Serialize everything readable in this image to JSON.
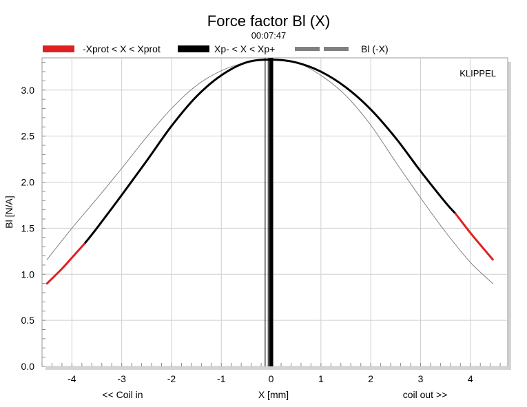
{
  "chart_data": {
    "type": "line",
    "title": "Force factor Bl (X)",
    "subtitle": "00:07:47",
    "watermark": "KLIPPEL",
    "xlabel": "X [mm]",
    "ylabel": "Bl [N/A]",
    "x_left_note": "<< Coil in",
    "x_right_note": "coil out >>",
    "xlim": [
      -4.6,
      4.75
    ],
    "ylim": [
      0.0,
      3.35
    ],
    "xticks": [
      -4,
      -3,
      -2,
      -1,
      0,
      1,
      2,
      3,
      4
    ],
    "yticks": [
      0.0,
      0.5,
      1.0,
      1.5,
      2.0,
      2.5,
      3.0
    ],
    "ytick_labels": [
      "0.0",
      "0.5",
      "1.0",
      "1.5",
      "2.0",
      "2.5",
      "3.0"
    ],
    "grid": true,
    "legend_position": "top",
    "legend": [
      {
        "label": "-Xprot < X < Xprot",
        "color": "#e02020",
        "style": "solid"
      },
      {
        "label": "Xp- < X < Xp+",
        "color": "#000000",
        "style": "solid"
      },
      {
        "label": "Bl (-X)",
        "color": "#808080",
        "style": "dashed"
      }
    ],
    "series": [
      {
        "name": "-Xprot < X < Xprot",
        "color": "#e02020",
        "x": [
          -4.5,
          -4.2,
          -4.0,
          -3.75
        ],
        "y": [
          0.9,
          1.06,
          1.18,
          1.33
        ]
      },
      {
        "name": "Xp- < X < Xp+",
        "color": "#000000",
        "x": [
          -3.75,
          -3.5,
          -3.0,
          -2.5,
          -2.0,
          -1.5,
          -1.0,
          -0.5,
          0.0,
          0.5,
          1.0,
          1.5,
          2.0,
          2.5,
          3.0,
          3.5,
          3.7
        ],
        "y": [
          1.33,
          1.5,
          1.86,
          2.23,
          2.61,
          2.93,
          3.16,
          3.3,
          3.33,
          3.3,
          3.2,
          3.03,
          2.79,
          2.48,
          2.12,
          1.78,
          1.66
        ]
      },
      {
        "name": "-Xprot < X < Xprot",
        "color": "#e02020",
        "x": [
          3.7,
          4.0,
          4.2,
          4.45
        ],
        "y": [
          1.66,
          1.45,
          1.32,
          1.16
        ]
      },
      {
        "name": "Bl (-X)",
        "color": "#808080",
        "x": [
          -4.5,
          -4.0,
          -3.5,
          -3.0,
          -2.5,
          -2.0,
          -1.5,
          -1.0,
          -0.5,
          0.0,
          0.5,
          1.0,
          1.5,
          2.0,
          2.5,
          3.0,
          3.5,
          4.0,
          4.45
        ],
        "y": [
          1.16,
          1.5,
          1.82,
          2.15,
          2.49,
          2.8,
          3.05,
          3.21,
          3.3,
          3.33,
          3.3,
          3.16,
          2.94,
          2.62,
          2.22,
          1.83,
          1.46,
          1.13,
          0.9
        ]
      }
    ],
    "vertical_markers": [
      {
        "x": -0.12,
        "color": "#000000",
        "weight": "thin"
      },
      {
        "x": -0.06,
        "color": "#000000",
        "weight": "thin"
      },
      {
        "x": 0.0,
        "color": "#000000",
        "weight": "thick"
      }
    ]
  }
}
